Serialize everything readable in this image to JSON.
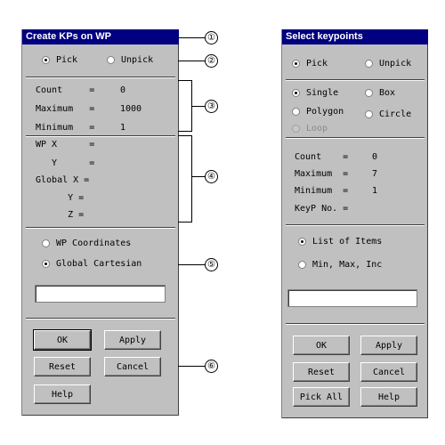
{
  "left_panel": {
    "title": "Create KPs on WP",
    "pick_label": "Pick",
    "unpick_label": "Unpick",
    "count_label": "Count     =",
    "count_value": "0",
    "maximum_label": "Maximum   =",
    "maximum_value": "1000",
    "minimum_label": "Minimum   =",
    "minimum_value": "1",
    "wpx_label": "WP X      =",
    "wpy_label": "   Y      =",
    "globalx_label": "Global X =",
    "globaly_label": "      Y =",
    "globalz_label": "      Z =",
    "wp_coords_label": "WP Coordinates",
    "global_cart_label": "Global Cartesian",
    "input_value": "",
    "ok_label": "OK",
    "apply_label": "Apply",
    "reset_label": "Reset",
    "cancel_label": "Cancel",
    "help_label": "Help"
  },
  "right_panel": {
    "title": "Select keypoints",
    "pick_label": "Pick",
    "unpick_label": "Unpick",
    "single_label": "Single",
    "box_label": "Box",
    "polygon_label": "Polygon",
    "circle_label": "Circle",
    "loop_label": "Loop",
    "count_label": "Count    =",
    "count_value": "0",
    "maximum_label": "Maximum  =",
    "maximum_value": "7",
    "minimum_label": "Minimum  =",
    "minimum_value": "1",
    "keyp_label": "KeyP No. =",
    "list_items_label": "List of Items",
    "minmax_label": "Min, Max, Inc",
    "input_value": "",
    "ok_label": "OK",
    "apply_label": "Apply",
    "reset_label": "Reset",
    "cancel_label": "Cancel",
    "pickall_label": "Pick All",
    "help_label": "Help"
  },
  "callouts": [
    "①",
    "②",
    "③",
    "④",
    "⑤",
    "⑥"
  ]
}
